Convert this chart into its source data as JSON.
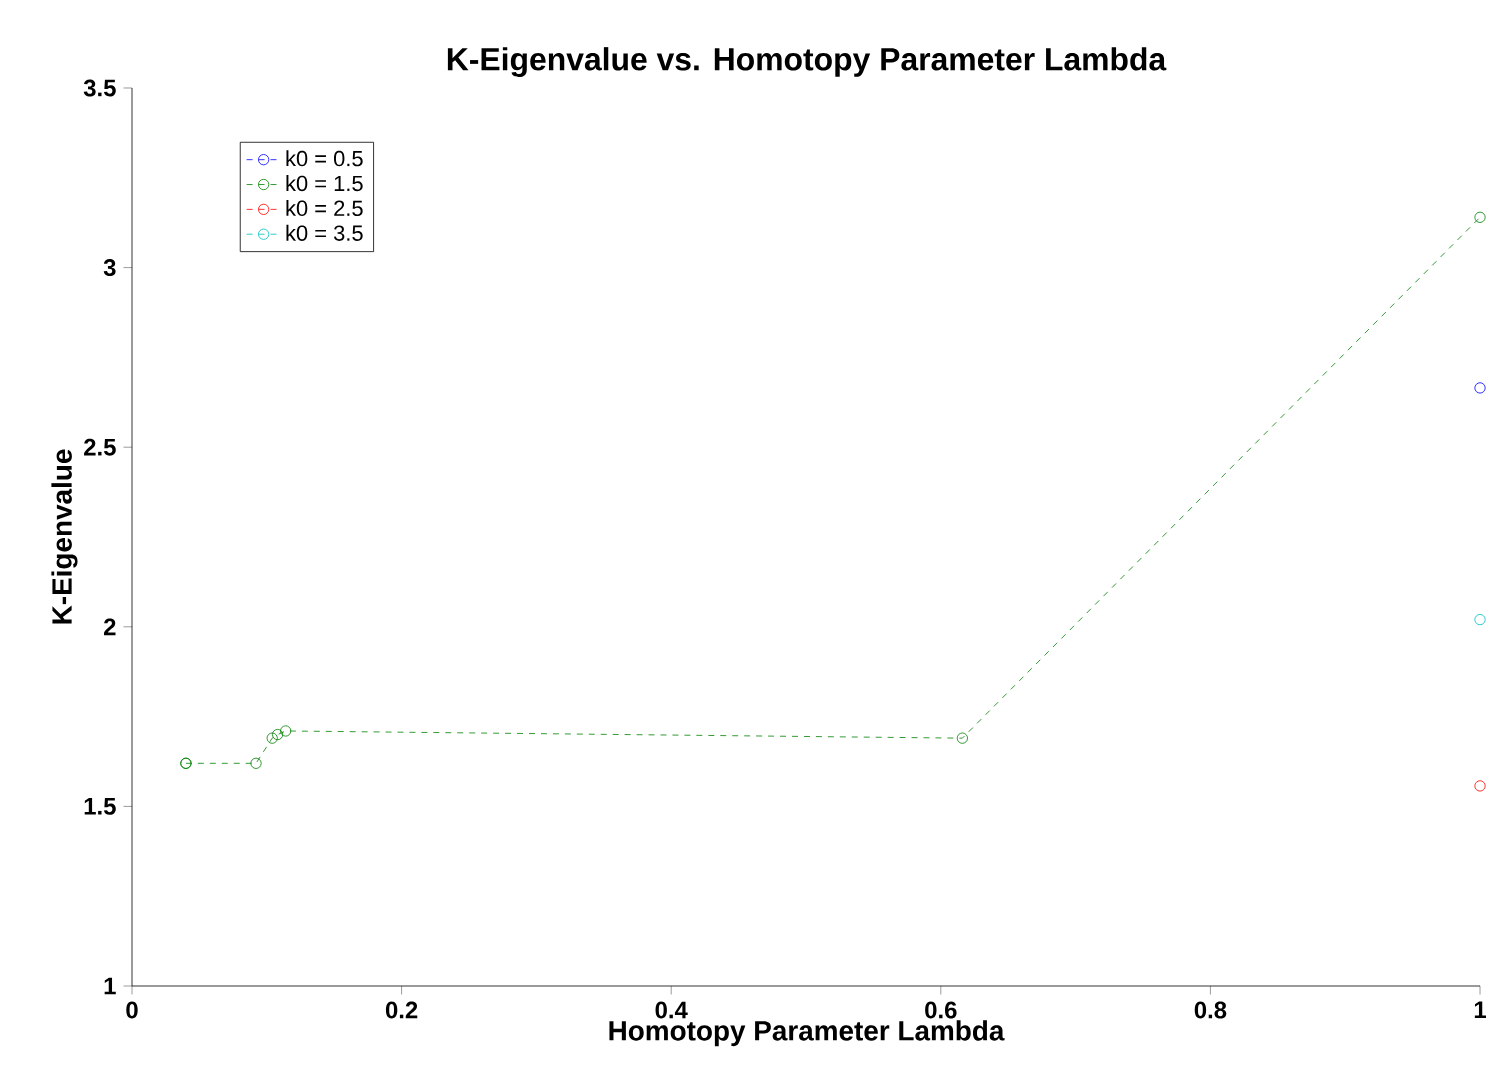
{
  "chart_data": {
    "type": "line",
    "title": "K-Eigenvalue vs. Homotopy Parameter Lambda",
    "xlabel": "Homotopy Parameter Lambda",
    "ylabel": "K-Eigenvalue",
    "series": [
      {
        "name": "k0 = 0.5",
        "color": "#0000ff",
        "x": [
          1.0
        ],
        "values": [
          2.665
        ]
      },
      {
        "name": "k0 = 1.5",
        "color": "#008000",
        "x": [
          0.04,
          0.04,
          0.092,
          0.104,
          0.108,
          0.114,
          0.616,
          1.0
        ],
        "values": [
          1.62,
          1.62,
          1.62,
          1.69,
          1.7,
          1.71,
          1.69,
          3.14
        ]
      },
      {
        "name": "k0 = 2.5",
        "color": "#ff0000",
        "x": [
          1.0
        ],
        "values": [
          1.557
        ]
      },
      {
        "name": "k0 = 3.5",
        "color": "#00bfbf",
        "x": [
          1.0
        ],
        "values": [
          2.02
        ]
      }
    ],
    "xlim": [
      0,
      1
    ],
    "ylim": [
      1,
      3.5
    ],
    "xticks": [
      0,
      0.2,
      0.4,
      0.6,
      0.8,
      1
    ],
    "yticks": [
      1,
      1.5,
      2,
      2.5,
      3,
      3.5
    ],
    "grid": false,
    "legend": "top left",
    "marker": "circle",
    "line_style": "dashed"
  }
}
